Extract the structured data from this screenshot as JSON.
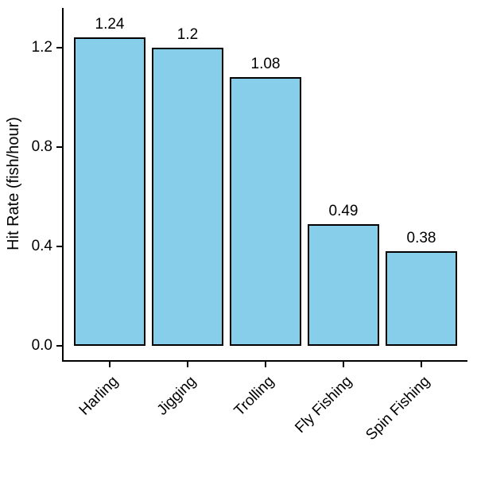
{
  "chart_data": {
    "type": "bar",
    "title": "",
    "categories": [
      "Harling",
      "Jigging",
      "Trolling",
      "Fly Fishing",
      "Spin Fishing"
    ],
    "values": [
      1.24,
      1.2,
      1.08,
      0.49,
      0.38
    ],
    "value_labels": [
      "1.24",
      "1.2",
      "1.08",
      "0.49",
      "0.38"
    ],
    "xlabel": "",
    "ylabel": "Hit Rate (fish/hour)",
    "ylim": [
      0,
      1.36
    ],
    "yticks": [
      {
        "value": 0.0,
        "label": "0.0"
      },
      {
        "value": 0.4,
        "label": "0.4"
      },
      {
        "value": 0.8,
        "label": "0.8"
      },
      {
        "value": 1.2,
        "label": "1.2"
      }
    ],
    "grid": false,
    "legend_position": "none",
    "colors": {
      "bar_fill": "#87CEEB",
      "bar_border": "#000000",
      "axis": "#000000",
      "text": "#000000"
    }
  }
}
